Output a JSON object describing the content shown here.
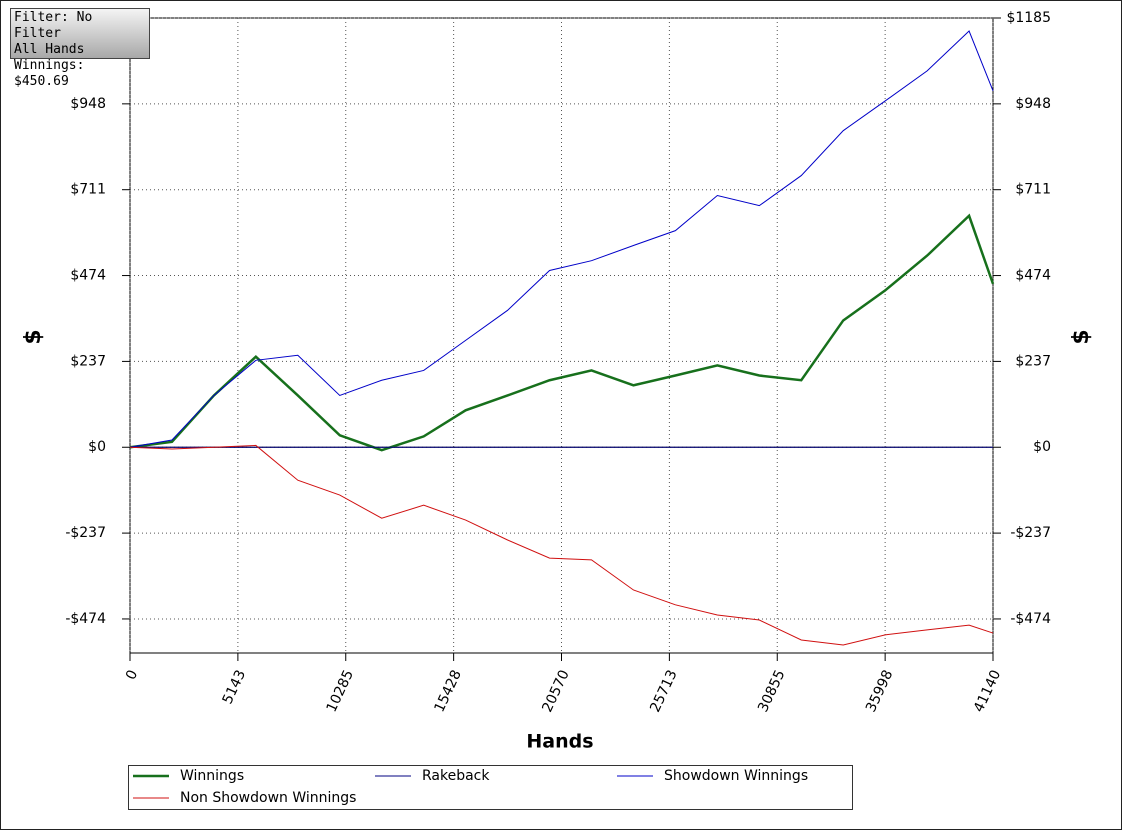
{
  "info_box": {
    "filter": "Filter: No Filter",
    "hands": "All Hands",
    "winnings": "Winnings: $450.69"
  },
  "chart_data": {
    "type": "line",
    "x_label": "Hands",
    "y_label": "$",
    "y2_label": "$",
    "x": [
      0,
      2000,
      4000,
      6000,
      8000,
      10000,
      12000,
      14000,
      16000,
      18000,
      20000,
      22000,
      24000,
      26000,
      28000,
      30000,
      32000,
      34000,
      36000,
      38000,
      40000,
      41140
    ],
    "series": [
      {
        "name": "Winnings",
        "color": "#17701c",
        "values": [
          0,
          15,
          143,
          250,
          143,
          33,
          -8,
          30,
          102,
          143,
          185,
          212,
          171,
          198,
          226,
          198,
          185,
          350,
          433,
          529,
          639,
          451
        ]
      },
      {
        "name": "Rakeback",
        "color": "#000080",
        "values": [
          0,
          0,
          0,
          0,
          0,
          0,
          0,
          0,
          0,
          0,
          0,
          0,
          0,
          0,
          0,
          0,
          0,
          0,
          0,
          0,
          0,
          0
        ]
      },
      {
        "name": "Showdown Winnings",
        "color": "#0000c8",
        "values": [
          0,
          20,
          143,
          240,
          254,
          143,
          185,
          212,
          295,
          378,
          488,
          515,
          557,
          598,
          695,
          667,
          750,
          874,
          956,
          1039,
          1149,
          984
        ]
      },
      {
        "name": "Non Showdown Winnings",
        "color": "#d01010",
        "values": [
          0,
          -5,
          0,
          5,
          -91,
          -132,
          -196,
          -160,
          -201,
          -256,
          -306,
          -311,
          -394,
          -435,
          -463,
          -477,
          -532,
          -546,
          -518,
          -504,
          -491,
          -513
        ]
      }
    ],
    "xlim": [
      0,
      41140
    ],
    "xticks": [
      0,
      5143,
      10285,
      15428,
      20570,
      25713,
      30855,
      35998,
      41140
    ],
    "ylim": [
      -568,
      1185
    ],
    "yticks": [
      {
        "value": -474,
        "label": "-$474"
      },
      {
        "value": -237,
        "label": "-$237"
      },
      {
        "value": 0,
        "label": "$0"
      },
      {
        "value": 237,
        "label": "$237"
      },
      {
        "value": 474,
        "label": "$474"
      },
      {
        "value": 711,
        "label": "$711"
      },
      {
        "value": 948,
        "label": "$948"
      },
      {
        "value": 1185,
        "label": "$1185"
      }
    ],
    "grid": true
  }
}
